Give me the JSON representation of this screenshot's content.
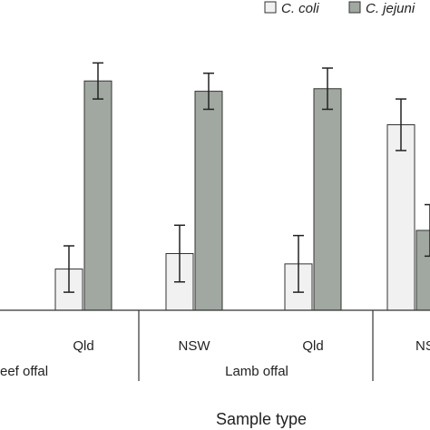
{
  "chart_data": {
    "type": "bar",
    "xlabel": "Sample type",
    "ylabel": "",
    "ylim": [
      0,
      100
    ],
    "grid": false,
    "legend_placement": "top-right",
    "categories": [
      "",
      "Qld",
      "NSW",
      "Qld",
      "NSW"
    ],
    "tick_labels": [
      "Qld",
      "NSW",
      "Qld",
      "NS"
    ],
    "groups": [
      "eef offal",
      "Lamb offal"
    ],
    "series": [
      {
        "name": "C. coli",
        "color": "#f0f1f0",
        "values": [
          null,
          16,
          22,
          18,
          72
        ],
        "errors": [
          null,
          9,
          11,
          11,
          10
        ]
      },
      {
        "name": "C. jejuni",
        "color": "#a1a8a2",
        "values": [
          null,
          89,
          85,
          86,
          31
        ],
        "errors": [
          null,
          7,
          7,
          8,
          10
        ]
      }
    ]
  }
}
